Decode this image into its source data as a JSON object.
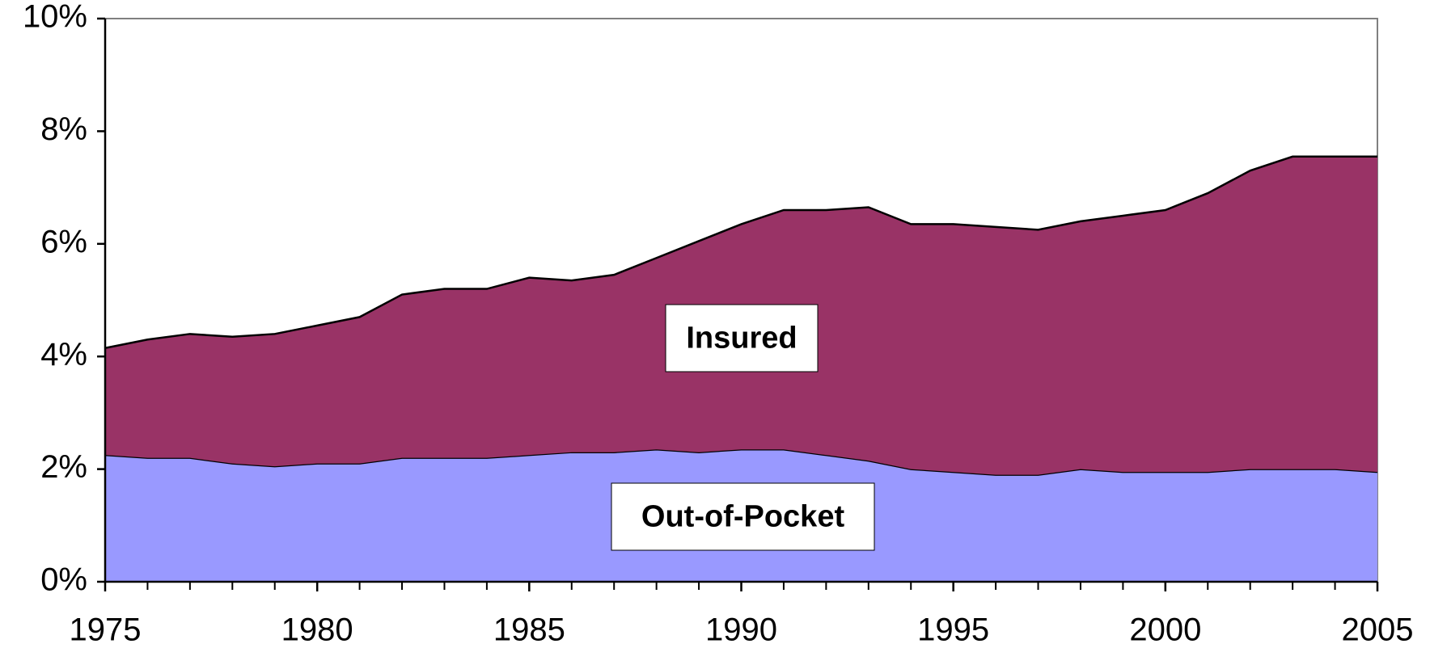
{
  "chart_data": {
    "type": "stacked_area",
    "x": [
      1975,
      1976,
      1977,
      1978,
      1979,
      1980,
      1981,
      1982,
      1983,
      1984,
      1985,
      1986,
      1987,
      1988,
      1989,
      1990,
      1991,
      1992,
      1993,
      1994,
      1995,
      1996,
      1997,
      1998,
      1999,
      2000,
      2001,
      2002,
      2003,
      2004,
      2005
    ],
    "series": [
      {
        "name": "Out-of-Pocket",
        "color": "#9999ff",
        "values": [
          2.25,
          2.2,
          2.2,
          2.1,
          2.05,
          2.1,
          2.1,
          2.2,
          2.2,
          2.2,
          2.25,
          2.3,
          2.3,
          2.35,
          2.3,
          2.35,
          2.35,
          2.25,
          2.15,
          2.0,
          1.95,
          1.9,
          1.9,
          2.0,
          1.95,
          1.95,
          1.95,
          2.0,
          2.0,
          2.0,
          1.95
        ]
      },
      {
        "name": "Insured",
        "color": "#993366",
        "values": [
          1.9,
          2.1,
          2.2,
          2.25,
          2.35,
          2.45,
          2.6,
          2.9,
          3.0,
          3.0,
          3.15,
          3.05,
          3.15,
          3.4,
          3.75,
          4.0,
          4.25,
          4.35,
          4.5,
          4.35,
          4.4,
          4.4,
          4.35,
          4.4,
          4.55,
          4.65,
          4.95,
          5.3,
          5.55,
          5.55,
          5.6
        ]
      }
    ],
    "xlim": [
      1975,
      2005
    ],
    "xticks": [
      1975,
      1980,
      1985,
      1990,
      1995,
      2000,
      2005
    ],
    "ylim": [
      0,
      10
    ],
    "yticks": [
      {
        "value": 0,
        "label": "0%"
      },
      {
        "value": 2,
        "label": "2%"
      },
      {
        "value": 4,
        "label": "4%"
      },
      {
        "value": 6,
        "label": "6%"
      },
      {
        "value": 8,
        "label": "8%"
      },
      {
        "value": 10,
        "label": "10%"
      }
    ],
    "grid": false
  }
}
